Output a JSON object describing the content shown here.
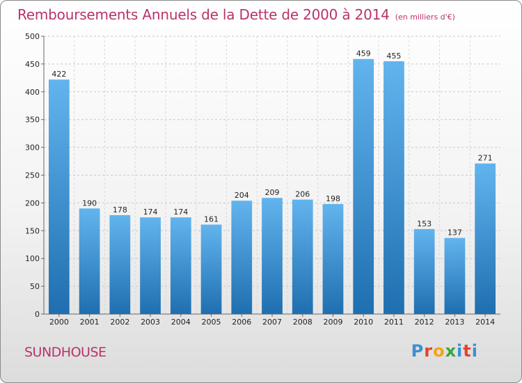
{
  "header": {
    "title": "Remboursements Annuels de la Dette de 2000 à 2014",
    "subtitle": "(en milliers d'€)"
  },
  "footer": {
    "place": "SUNDHOUSE",
    "brand": "Proxiti"
  },
  "colors": {
    "title": "#b8336a",
    "bar_top": "#62b4ee",
    "bar_bottom": "#1f6fb0"
  },
  "chart_data": {
    "type": "bar",
    "title": "Remboursements Annuels de la Dette de 2000 à 2014",
    "subtitle": "(en milliers d'€)",
    "xlabel": "",
    "ylabel": "",
    "categories": [
      "2000",
      "2001",
      "2002",
      "2003",
      "2004",
      "2005",
      "2006",
      "2007",
      "2008",
      "2009",
      "2010",
      "2011",
      "2012",
      "2013",
      "2014"
    ],
    "values": [
      422,
      190,
      178,
      174,
      174,
      161,
      204,
      209,
      206,
      198,
      459,
      455,
      153,
      137,
      271
    ],
    "ylim": [
      0,
      500
    ],
    "yticks": [
      0,
      50,
      100,
      150,
      200,
      250,
      300,
      350,
      400,
      450,
      500
    ],
    "grid": true
  }
}
